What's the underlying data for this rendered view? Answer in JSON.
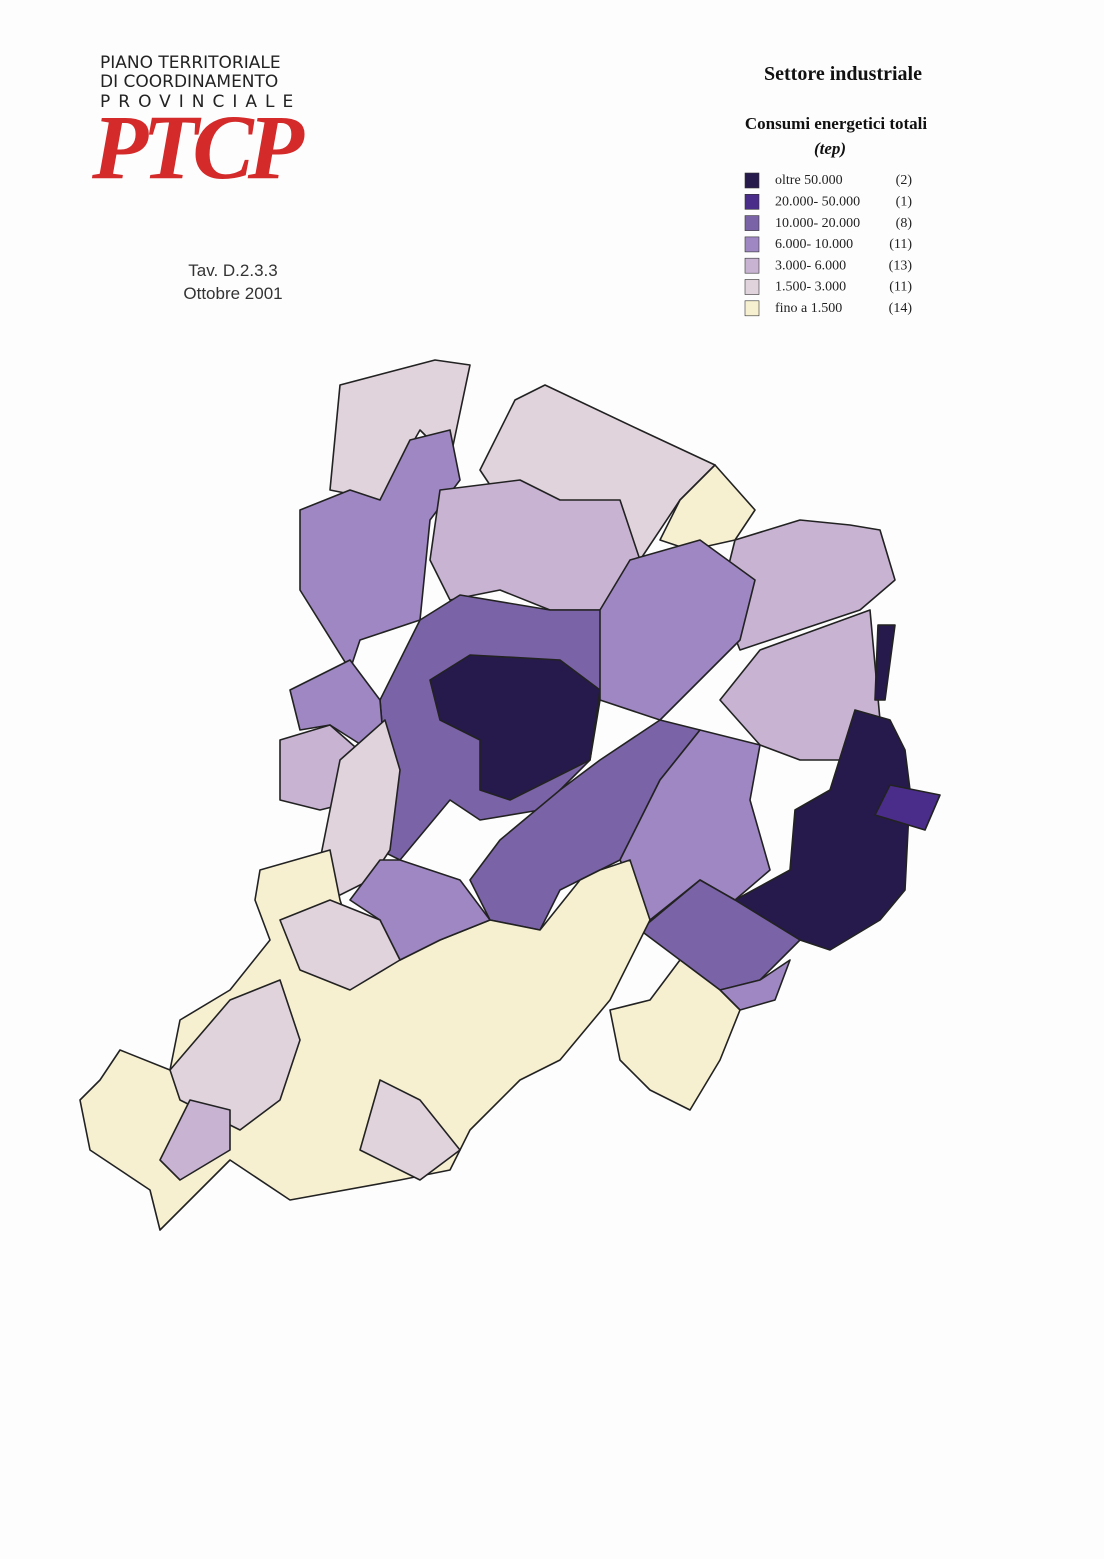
{
  "header": {
    "logo_lines": [
      "PIANO TERRITORIALE",
      "DI COORDINAMENTO",
      "PROVINCIALE"
    ],
    "logo_mark": "PTCP",
    "table_ref": "Tav. D.2.3.3",
    "date": "Ottobre 2001"
  },
  "legend": {
    "title": "Settore industriale",
    "subtitle": "Consumi energetici totali",
    "unit": "(tep)",
    "items": [
      {
        "label": "oltre 50.000",
        "count": "(2)",
        "color": "#261a4d"
      },
      {
        "label": "20.000- 50.000",
        "count": "(1)",
        "color": "#4a2d8a"
      },
      {
        "label": "10.000- 20.000",
        "count": "(8)",
        "color": "#7b63a8"
      },
      {
        "label": "6.000- 10.000",
        "count": "(11)",
        "color": "#9f87c3"
      },
      {
        "label": "3.000- 6.000",
        "count": "(13)",
        "color": "#c8b3d3"
      },
      {
        "label": "1.500- 3.000",
        "count": "(11)",
        "color": "#e0d3dc"
      },
      {
        "label": "fino a 1.500",
        "count": "(14)",
        "color": "#f7f0d0"
      }
    ]
  }
}
